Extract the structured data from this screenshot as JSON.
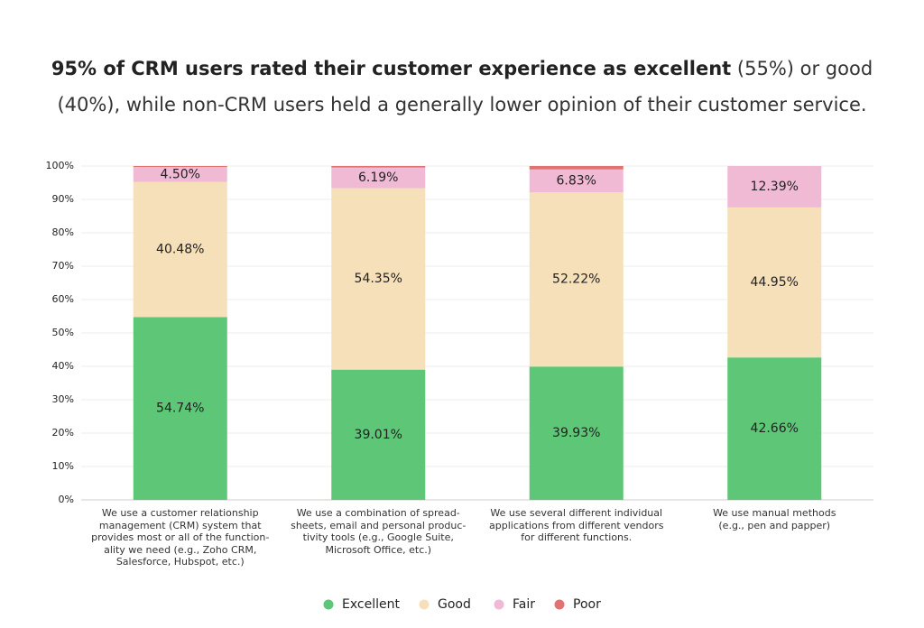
{
  "chart_data": {
    "type": "stacked_bar",
    "title": "95% of CRM users rated their customer experience as excellent",
    "subtitle": "(55%) or good (40%), while non-CRM users held a generally lower opinion of their customer service.",
    "categories": [
      "We use a customer relationship\nmanagement (CRM) system that\nprovides most or all of the function-\nality we need (e.g., Zoho CRM,\nSalesforce, Hubspot, etc.)",
      "We use a combination of spread-\nsheets, email and personal produc-\ntivity tools (e.g., Google Suite,\nMicrosoft Office, etc.)",
      "We use several different individual\napplications from different vendors\nfor different functions.",
      "We use manual methods\n(e.g., pen and papper)"
    ],
    "series": [
      {
        "name": "Excellent",
        "color": "#5ec677",
        "values": [
          54.74,
          39.01,
          39.93,
          42.66
        ],
        "value_labels": [
          "54.74%",
          "39.01%",
          "39.93%",
          "42.66%"
        ]
      },
      {
        "name": "Good",
        "color": "#f5e0b9",
        "values": [
          40.48,
          54.35,
          52.22,
          44.95
        ],
        "value_labels": [
          "40.48%",
          "54.35%",
          "52.22%",
          "44.95%"
        ]
      },
      {
        "name": "Fair",
        "color": "#f0bad5",
        "values": [
          4.5,
          6.19,
          6.83,
          12.39
        ],
        "value_labels": [
          "4.50%",
          "6.19%",
          "6.83%",
          "12.39%"
        ]
      },
      {
        "name": "Poor",
        "color": "#e07272",
        "values": [
          0.28,
          0.45,
          1.02,
          0
        ]
      }
    ],
    "ylim": [
      0,
      100
    ],
    "yticks": [
      {
        "value": 0,
        "label": "0%"
      },
      {
        "value": 10,
        "label": "10%"
      },
      {
        "value": 20,
        "label": "20%"
      },
      {
        "value": 30,
        "label": "30%"
      },
      {
        "value": 40,
        "label": "40%"
      },
      {
        "value": 50,
        "label": "50%"
      },
      {
        "value": 60,
        "label": "60%"
      },
      {
        "value": 70,
        "label": "70%"
      },
      {
        "value": 80,
        "label": "80%"
      },
      {
        "value": 90,
        "label": "90%"
      },
      {
        "value": 100,
        "label": "100%"
      }
    ],
    "grid": true
  }
}
